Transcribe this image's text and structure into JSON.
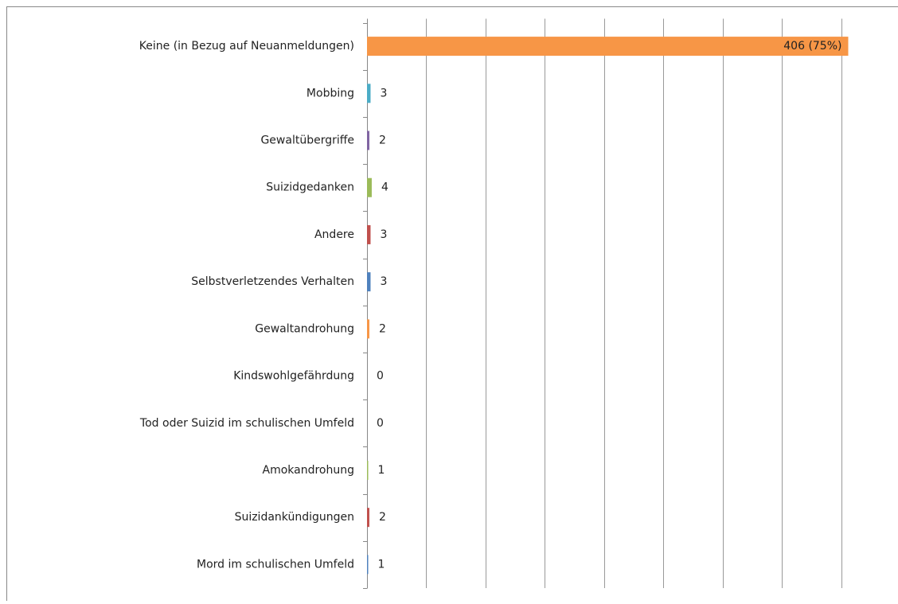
{
  "chart_data": {
    "type": "bar",
    "orientation": "horizontal",
    "categories": [
      "Keine (in Bezug auf Neuanmeldungen)",
      "Mobbing",
      "Gewaltübergriffe",
      "Suizidgedanken",
      "Andere",
      "Selbstverletzendes Verhalten",
      "Gewaltandrohung",
      "Kindswohlgefährdung",
      "Tod oder Suizid im schulischen Umfeld",
      "Amokandrohung",
      "Suizidankündigungen",
      "Mord im schulischen Umfeld"
    ],
    "values": [
      406,
      3,
      2,
      4,
      3,
      3,
      2,
      0,
      0,
      1,
      2,
      1
    ],
    "value_labels": [
      "406 (75%)",
      "3",
      "2",
      "4",
      "3",
      "3",
      "2",
      "0",
      "0",
      "1",
      "2",
      "1"
    ],
    "colors": [
      "#f79646",
      "#4bacc6",
      "#8064a2",
      "#9bbb59",
      "#c0504d",
      "#4f81bd",
      "#f79646",
      "#4bacc6",
      "#8064a2",
      "#9bbb59",
      "#c0504d",
      "#4f81bd"
    ],
    "xlim": [
      0,
      450
    ],
    "xticks": [
      0,
      50,
      100,
      150,
      200,
      250,
      300,
      350,
      400
    ],
    "grid": true
  }
}
